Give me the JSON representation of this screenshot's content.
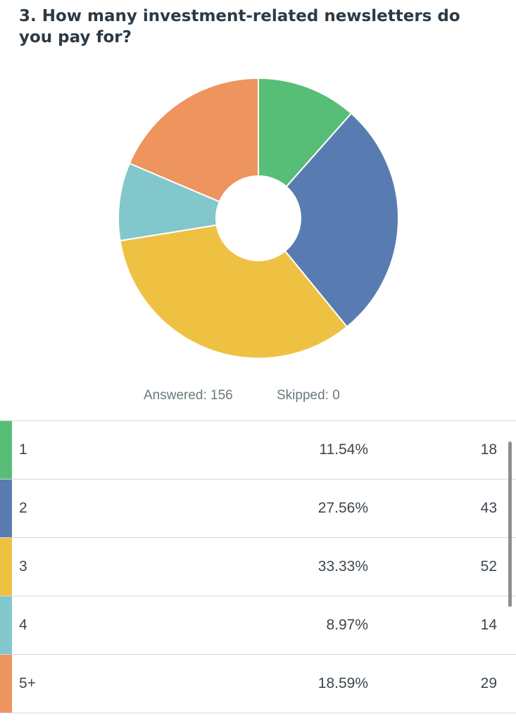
{
  "question": "3. How many investment-related newsletters do you pay for?",
  "summary": {
    "answered": "Answered: 156",
    "skipped": "Skipped: 0"
  },
  "chart_data": {
    "type": "pie",
    "donut": true,
    "categories": [
      "1",
      "2",
      "3",
      "4",
      "5+"
    ],
    "values": [
      18,
      43,
      52,
      14,
      29
    ],
    "percentages": [
      "11.54%",
      "27.56%",
      "33.33%",
      "8.97%",
      "18.59%"
    ],
    "colors": [
      "#58be77",
      "#587cb1",
      "#efc143",
      "#82c7cb",
      "#ee945f"
    ],
    "title": ""
  },
  "table": {
    "rows": [
      {
        "label": "1",
        "pct": "11.54%",
        "count": "18"
      },
      {
        "label": "2",
        "pct": "27.56%",
        "count": "43"
      },
      {
        "label": "3",
        "pct": "33.33%",
        "count": "52"
      },
      {
        "label": "4",
        "pct": "8.97%",
        "count": "14"
      },
      {
        "label": "5+",
        "pct": "18.59%",
        "count": "29"
      }
    ]
  }
}
